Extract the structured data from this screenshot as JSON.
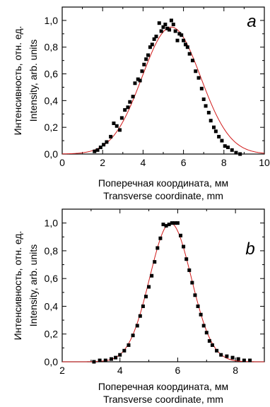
{
  "chart_data": [
    {
      "type": "scatter",
      "panel_label": "a",
      "xlabel": [
        "Поперечная координата, мм",
        "Transverse coordinate, mm"
      ],
      "ylabel": [
        "Интенсивность, отн. ед.",
        "Intensity, arb. units"
      ],
      "xlim": [
        0,
        10
      ],
      "ylim": [
        0,
        1.1
      ],
      "xticks": [
        0,
        2,
        4,
        6,
        8,
        10
      ],
      "xtick_labels": [
        "0",
        "2",
        "4",
        "6",
        "8",
        "10"
      ],
      "yticks": [
        0,
        0.2,
        0.4,
        0.6,
        0.8,
        1.0
      ],
      "ytick_labels": [
        "0,0",
        "0,2",
        "0,4",
        "0,6",
        "0,8",
        "1,0"
      ],
      "grid": false,
      "fit_color": "#d11a1a",
      "marker_color": "#000000",
      "fit": {
        "kind": "gaussian",
        "amplitude": 0.95,
        "center": 5.4,
        "sigma": 1.45
      },
      "points": [
        [
          1.6,
          0.02
        ],
        [
          1.75,
          0.03
        ],
        [
          1.9,
          0.05
        ],
        [
          2.05,
          0.07
        ],
        [
          2.2,
          0.09
        ],
        [
          2.4,
          0.13
        ],
        [
          2.55,
          0.23
        ],
        [
          2.7,
          0.21
        ],
        [
          2.85,
          0.18
        ],
        [
          2.95,
          0.27
        ],
        [
          3.1,
          0.33
        ],
        [
          3.25,
          0.35
        ],
        [
          3.35,
          0.39
        ],
        [
          3.5,
          0.43
        ],
        [
          3.6,
          0.53
        ],
        [
          3.75,
          0.56
        ],
        [
          3.85,
          0.55
        ],
        [
          3.95,
          0.62
        ],
        [
          4.05,
          0.67
        ],
        [
          4.15,
          0.71
        ],
        [
          4.25,
          0.74
        ],
        [
          4.35,
          0.8
        ],
        [
          4.45,
          0.82
        ],
        [
          4.55,
          0.86
        ],
        [
          4.65,
          0.88
        ],
        [
          4.8,
          0.98
        ],
        [
          4.9,
          0.92
        ],
        [
          5.0,
          0.95
        ],
        [
          5.1,
          0.97
        ],
        [
          5.2,
          0.94
        ],
        [
          5.3,
          0.93
        ],
        [
          5.4,
          1.0
        ],
        [
          5.5,
          0.97
        ],
        [
          5.6,
          0.92
        ],
        [
          5.7,
          0.85
        ],
        [
          5.8,
          0.9
        ],
        [
          5.9,
          0.89
        ],
        [
          6.0,
          0.85
        ],
        [
          6.1,
          0.82
        ],
        [
          6.2,
          0.8
        ],
        [
          6.3,
          0.75
        ],
        [
          6.45,
          0.7
        ],
        [
          6.6,
          0.62
        ],
        [
          6.75,
          0.57
        ],
        [
          6.9,
          0.49
        ],
        [
          7.0,
          0.41
        ],
        [
          7.1,
          0.36
        ],
        [
          7.25,
          0.31
        ],
        [
          7.35,
          0.25
        ],
        [
          7.5,
          0.2
        ],
        [
          7.6,
          0.17
        ],
        [
          7.75,
          0.13
        ],
        [
          7.9,
          0.1
        ],
        [
          8.05,
          0.06
        ],
        [
          8.2,
          0.05
        ],
        [
          8.4,
          0.03
        ],
        [
          8.6,
          0.01
        ],
        [
          8.8,
          0.0
        ]
      ]
    },
    {
      "type": "scatter",
      "panel_label": "b",
      "xlabel": [
        "Поперечная координата, мм",
        "Transverse coordinate, mm"
      ],
      "ylabel": [
        "Интенсивность, отн. ед.",
        "Intensity, arb. units"
      ],
      "xlim": [
        2,
        9
      ],
      "ylim": [
        0,
        1.1
      ],
      "xticks": [
        2,
        4,
        6,
        8
      ],
      "xtick_labels": [
        "2",
        "4",
        "6",
        "8"
      ],
      "yticks": [
        0,
        0.2,
        0.4,
        0.6,
        0.8,
        1.0
      ],
      "ytick_labels": [
        "0,0",
        "0,2",
        "0,4",
        "0,6",
        "0,8",
        "1,0"
      ],
      "grid": false,
      "fit_color": "#d11a1a",
      "marker_color": "#000000",
      "fit": {
        "kind": "gaussian",
        "amplitude": 1.0,
        "center": 5.75,
        "sigma": 0.72
      },
      "points": [
        [
          3.1,
          0.0
        ],
        [
          3.3,
          0.01
        ],
        [
          3.5,
          0.01
        ],
        [
          3.7,
          0.02
        ],
        [
          3.85,
          0.03
        ],
        [
          4.0,
          0.05
        ],
        [
          4.15,
          0.08
        ],
        [
          4.3,
          0.12
        ],
        [
          4.45,
          0.19
        ],
        [
          4.6,
          0.26
        ],
        [
          4.7,
          0.33
        ],
        [
          4.8,
          0.4
        ],
        [
          4.9,
          0.47
        ],
        [
          5.0,
          0.54
        ],
        [
          5.1,
          0.62
        ],
        [
          5.2,
          0.72
        ],
        [
          5.3,
          0.82
        ],
        [
          5.4,
          0.89
        ],
        [
          5.5,
          0.99
        ],
        [
          5.6,
          0.98
        ],
        [
          5.7,
          0.99
        ],
        [
          5.8,
          1.0
        ],
        [
          5.9,
          1.0
        ],
        [
          6.0,
          1.0
        ],
        [
          6.1,
          0.91
        ],
        [
          6.2,
          0.83
        ],
        [
          6.3,
          0.74
        ],
        [
          6.4,
          0.66
        ],
        [
          6.5,
          0.57
        ],
        [
          6.6,
          0.48
        ],
        [
          6.7,
          0.4
        ],
        [
          6.8,
          0.34
        ],
        [
          6.9,
          0.26
        ],
        [
          7.0,
          0.21
        ],
        [
          7.1,
          0.15
        ],
        [
          7.2,
          0.12
        ],
        [
          7.35,
          0.08
        ],
        [
          7.5,
          0.05
        ],
        [
          7.7,
          0.04
        ],
        [
          7.9,
          0.03
        ],
        [
          8.1,
          0.02
        ],
        [
          8.3,
          0.01
        ],
        [
          8.5,
          0.01
        ]
      ]
    }
  ]
}
